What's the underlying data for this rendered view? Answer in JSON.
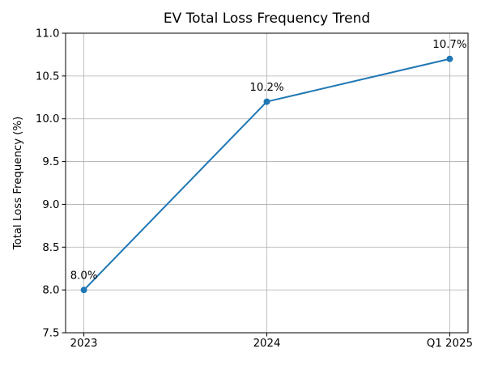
{
  "chart_data": {
    "type": "line",
    "title": "EV Total Loss Frequency Trend",
    "xlabel": "",
    "ylabel": "Total Loss Frequency (%)",
    "categories": [
      "2023",
      "2024",
      "Q1 2025"
    ],
    "series": [
      {
        "name": "EV Total Loss Frequency",
        "values": [
          8.0,
          10.2,
          10.7
        ],
        "point_labels": [
          "8.0%",
          "10.2%",
          "10.7%"
        ]
      }
    ],
    "ylim": [
      7.5,
      11.0
    ],
    "yticks": [
      7.5,
      8.0,
      8.5,
      9.0,
      9.5,
      10.0,
      10.5,
      11.0
    ],
    "ytick_labels": [
      "7.5",
      "8.0",
      "8.5",
      "9.0",
      "9.5",
      "10.0",
      "10.5",
      "11.0"
    ],
    "grid": true,
    "legend_position": "none",
    "line_color": "#1f77b4",
    "marker_color": "#1f77b4",
    "grid_color": "#b0b0b0",
    "axis_color": "#000000",
    "background_color": "#ffffff"
  }
}
